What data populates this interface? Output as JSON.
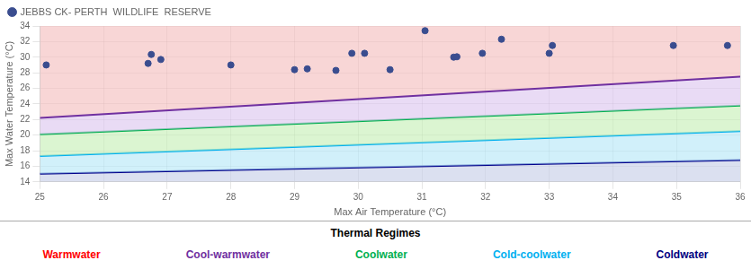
{
  "chart_data": {
    "type": "scatter",
    "xlabel": "Max Air Temperature (°C)",
    "ylabel": "Max Water Temperature (°C)",
    "xlim": [
      25,
      36
    ],
    "ylim": [
      14,
      34
    ],
    "xticks": [
      25,
      26,
      27,
      28,
      29,
      30,
      31,
      32,
      33,
      34,
      35,
      36
    ],
    "yticks": [
      14,
      16,
      18,
      20,
      22,
      24,
      26,
      28,
      30,
      32,
      34
    ],
    "grid": true,
    "legend": "upper left",
    "series": [
      {
        "name": "JEBBS CK- PERTH  WILDLIFE  RESERVE",
        "type": "scatter",
        "marker": "circle",
        "color": "#3a4d8f",
        "x": [
          25.1,
          26.7,
          26.75,
          26.9,
          28.0,
          29.0,
          29.2,
          29.65,
          29.9,
          30.1,
          30.5,
          31.05,
          31.5,
          31.55,
          31.95,
          32.25,
          33.0,
          33.05,
          34.95,
          35.8
        ],
        "values": [
          29.0,
          29.2,
          30.35,
          29.7,
          29.0,
          28.4,
          28.5,
          28.3,
          30.5,
          30.5,
          28.4,
          33.4,
          30.0,
          30.05,
          30.5,
          32.3,
          30.5,
          31.5,
          31.5,
          31.5
        ]
      },
      {
        "type": "line",
        "color": "#7030a0",
        "x": [
          25,
          36
        ],
        "values": [
          22.2,
          27.5
        ]
      },
      {
        "type": "line",
        "color": "#00b050",
        "x": [
          25,
          36
        ],
        "values": [
          20.1,
          23.8
        ]
      },
      {
        "type": "line",
        "color": "#00b0f0",
        "x": [
          25,
          36
        ],
        "values": [
          17.3,
          20.5
        ]
      },
      {
        "type": "line",
        "color": "#00008b",
        "x": [
          25,
          36
        ],
        "values": [
          15.05,
          16.8
        ]
      }
    ],
    "bands": [
      "#f5c0c0",
      "#ddc8f0",
      "#c8f0b8",
      "#b8e8f8",
      "#c8d0e8"
    ],
    "annotations": [
      {
        "text": "Thermal Regimes"
      },
      {
        "text": "Warmwater",
        "color": "#ff0000"
      },
      {
        "text": "Cool-warmwater",
        "color": "#7030a0"
      },
      {
        "text": "Coolwater",
        "color": "#00b050"
      },
      {
        "text": "Cold-coolwater",
        "color": "#00b0f0"
      },
      {
        "text": "Coldwater",
        "color": "#000080"
      }
    ]
  }
}
